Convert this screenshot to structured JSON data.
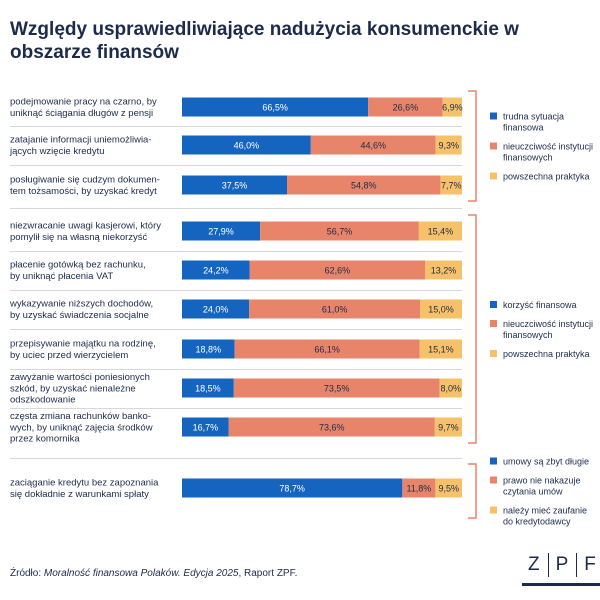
{
  "title": "Względy usprawiedliwiające nadużycia konsumenckie w obszarze finansów",
  "source": {
    "prefix": "Źródło: ",
    "italic": "Moralność finansowa Polaków. Edycja 2025",
    "suffix": ", Raport ZPF."
  },
  "logo": {
    "letters": [
      "Z",
      "P",
      "F"
    ]
  },
  "colors": {
    "series1": "#1565c0",
    "series2": "#e8846a",
    "series3": "#f7c16a",
    "bracket": "#e8846a",
    "divider": "#d8d8d8",
    "text": "#1c2b4a"
  },
  "chart_data": {
    "type": "bar",
    "stacked": true,
    "orientation": "horizontal",
    "xlim": [
      0,
      100
    ],
    "unit": "%",
    "categories": [
      "podejmowanie pracy na czarno, by\nuniknąć ściągania długów z pensji",
      "zatajanie informacji uniemożliwia-\njących wzięcie kredytu",
      "posługiwanie się cudzym dokumen-\ntem tożsamości, by uzyskać kredyt",
      "niezwracanie uwagi kasjerowi, który\npomylił się na własną niekorzyść",
      "płacenie gotówką bez rachunku,\nby uniknąć płacenia VAT",
      "wykazywanie niższych dochodów,\nby uzyskać świadczenia socjalne",
      "przepisywanie majątku na rodzinę,\nby uciec przed wierzycielem",
      "zawyżanie wartości poniesionych\nszkód, by uzyskać nienależne\nodszkodowanie",
      "częsta zmiana rachunków banko-\nwych, by uniknąć zajęcia środków\nprzez komornika",
      "zaciąganie kredytu bez zapoznania\nsię dokładnie z warunkami spłaty"
    ],
    "values": [
      [
        66.5,
        26.6,
        6.9
      ],
      [
        46.0,
        44.6,
        9.3
      ],
      [
        37.5,
        54.8,
        7.7
      ],
      [
        27.9,
        56.7,
        15.4
      ],
      [
        24.2,
        62.6,
        13.2
      ],
      [
        24.0,
        61.0,
        15.0
      ],
      [
        18.8,
        66.1,
        15.1
      ],
      [
        18.5,
        73.5,
        8.0
      ],
      [
        16.7,
        73.6,
        9.7
      ],
      [
        78.7,
        11.8,
        9.5
      ]
    ],
    "labels": [
      [
        "66,5%",
        "26,6%",
        "6,9%"
      ],
      [
        "46,0%",
        "44,6%",
        "9,3%"
      ],
      [
        "37,5%",
        "54,8%",
        "7,7%"
      ],
      [
        "27,9%",
        "56,7%",
        "15,4%"
      ],
      [
        "24,2%",
        "62,6%",
        "13,2%"
      ],
      [
        "24,0%",
        "61,0%",
        "15,0%"
      ],
      [
        "18,8%",
        "66,1%",
        "15,1%"
      ],
      [
        "18,5%",
        "73,5%",
        "8,0%"
      ],
      [
        "16,7%",
        "73,6%",
        "9,7%"
      ],
      [
        "78,7%",
        "11,8%",
        "9,5%"
      ]
    ],
    "groups": [
      {
        "rows": [
          0,
          1,
          2
        ],
        "legend": [
          "trudna sytuacja\nfinansowa",
          "nieuczciwość instytucji\nfinansowych",
          "powszechna praktyka"
        ]
      },
      {
        "rows": [
          3,
          4,
          5,
          6,
          7,
          8
        ],
        "legend": [
          "korzyść finansowa",
          "nieuczciwość instytucji\nfinansowych",
          "powszechna praktyka"
        ]
      },
      {
        "rows": [
          9
        ],
        "legend": [
          "umowy są zbyt długie",
          "prawo nie nakazuje\nczytania umów",
          "należy mieć zaufanie\ndo kredytodawcy"
        ]
      }
    ]
  }
}
